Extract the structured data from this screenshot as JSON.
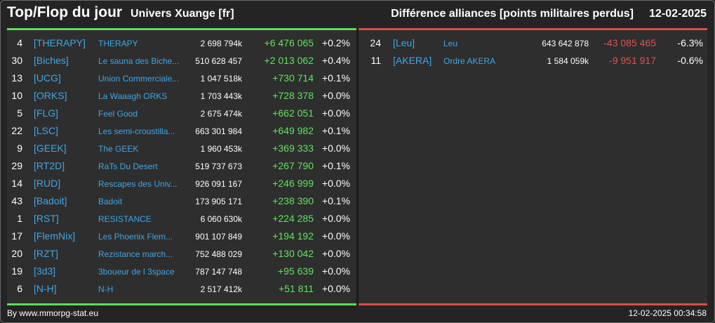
{
  "header": {
    "title": "Top/Flop du jour",
    "universe": "Univers Xuange [fr]",
    "subtitle": "Différence alliances [points militaires perdus]",
    "date": "12-02-2025"
  },
  "colors": {
    "positive": "#5fe35f",
    "negative": "#e35050",
    "tag": "#3fa6e6"
  },
  "top": [
    {
      "rank": "4",
      "tag": "[THERAPY]",
      "name": "THERAPY",
      "points": "2 698 794k",
      "delta": "+6 476 065",
      "pct": "+0.2%"
    },
    {
      "rank": "30",
      "tag": "[Biches]",
      "name": "Le sauna des Biche...",
      "points": "510 628 457",
      "delta": "+2 013 062",
      "pct": "+0.4%"
    },
    {
      "rank": "13",
      "tag": "[UCG]",
      "name": "Union Commerciale...",
      "points": "1 047 518k",
      "delta": "+730 714",
      "pct": "+0.1%"
    },
    {
      "rank": "10",
      "tag": "[ORKS]",
      "name": "La Waaagh ORKS",
      "points": "1 703 443k",
      "delta": "+728 378",
      "pct": "+0.0%"
    },
    {
      "rank": "5",
      "tag": "[FLG]",
      "name": "Feel Good",
      "points": "2 675 474k",
      "delta": "+662 051",
      "pct": "+0.0%"
    },
    {
      "rank": "22",
      "tag": "[LSC]",
      "name": "Les semi-croustilla...",
      "points": "663 301 984",
      "delta": "+649 982",
      "pct": "+0.1%"
    },
    {
      "rank": "9",
      "tag": "[GEEK]",
      "name": "The GEEK",
      "points": "1 960 453k",
      "delta": "+369 333",
      "pct": "+0.0%"
    },
    {
      "rank": "29",
      "tag": "[RT2D]",
      "name": "RaTs Du Desert",
      "points": "519 737 673",
      "delta": "+267 790",
      "pct": "+0.1%"
    },
    {
      "rank": "14",
      "tag": "[RUD]",
      "name": "Rescapes des Univ...",
      "points": "926 091 167",
      "delta": "+246 999",
      "pct": "+0.0%"
    },
    {
      "rank": "43",
      "tag": "[Badoit]",
      "name": "Badoit",
      "points": "173 905 171",
      "delta": "+238 390",
      "pct": "+0.1%"
    },
    {
      "rank": "1",
      "tag": "[RST]",
      "name": "RESISTANCE",
      "points": "6 060 630k",
      "delta": "+224 285",
      "pct": "+0.0%"
    },
    {
      "rank": "17",
      "tag": "[FlemNix]",
      "name": "Les Phoenix Flem...",
      "points": "901 107 849",
      "delta": "+194 192",
      "pct": "+0.0%"
    },
    {
      "rank": "20",
      "tag": "[RZT]",
      "name": "Rezistance march...",
      "points": "752 488 029",
      "delta": "+130 042",
      "pct": "+0.0%"
    },
    {
      "rank": "19",
      "tag": "[3d3]",
      "name": "3boueur de l 3space",
      "points": "787 147 748",
      "delta": "+95 639",
      "pct": "+0.0%"
    },
    {
      "rank": "6",
      "tag": "[N-H]",
      "name": "N-H",
      "points": "2 517 412k",
      "delta": "+51 811",
      "pct": "+0.0%"
    }
  ],
  "flop": [
    {
      "rank": "24",
      "tag": "[Leu]",
      "name": "Leu",
      "points": "643 642 878",
      "delta": "-43 085 465",
      "pct": "-6.3%"
    },
    {
      "rank": "11",
      "tag": "[AKERA]",
      "name": "Ordre AKERA",
      "points": "1 584 059k",
      "delta": "-9 951 917",
      "pct": "-0.6%"
    }
  ],
  "footer": {
    "source": "By www.mmorpg-stat.eu",
    "timestamp": "12-02-2025 00:34:58"
  }
}
